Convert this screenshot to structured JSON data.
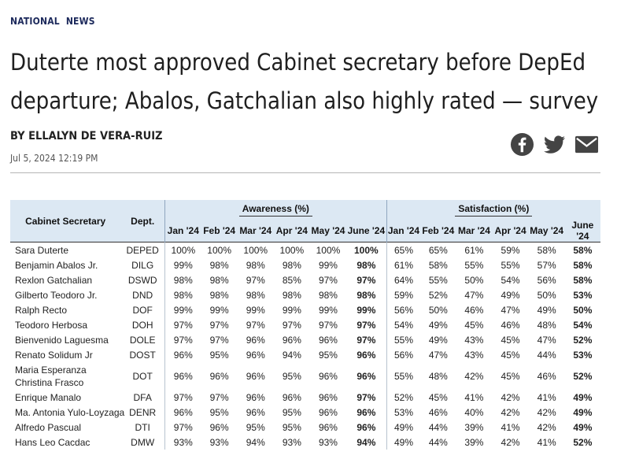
{
  "section": {
    "kicker_a": "NATIONAL",
    "kicker_b": "NEWS"
  },
  "article": {
    "headline": "Duterte most approved Cabinet secretary before DepEd departure; Abalos, Gatchalian also highly rated — survey",
    "byline": "BY ELLALYN DE VERA-RUIZ",
    "date": "Jul 5, 2024 12:19 PM"
  },
  "share": {
    "icons": [
      "facebook-icon",
      "twitter-icon",
      "email-icon"
    ]
  },
  "colors": {
    "kicker": "#1d2a5c",
    "table_header_bg": "#dce8f3"
  },
  "table": {
    "col_secretary": "Cabinet Secretary",
    "col_dept": "Dept.",
    "group_awareness": "Awareness (%)",
    "group_satisfaction": "Satisfaction (%)",
    "months": [
      "Jan '24",
      "Feb '24",
      "Mar '24",
      "Apr '24",
      "May '24",
      "June '24"
    ],
    "rows": [
      {
        "name": "Sara Duterte",
        "dept": "DEPED",
        "aw": [
          "100%",
          "100%",
          "100%",
          "100%",
          "100%",
          "100%"
        ],
        "sat": [
          "65%",
          "65%",
          "61%",
          "59%",
          "58%",
          "58%"
        ]
      },
      {
        "name": "Benjamin Abalos Jr.",
        "dept": "DILG",
        "aw": [
          "99%",
          "98%",
          "98%",
          "98%",
          "99%",
          "98%"
        ],
        "sat": [
          "61%",
          "58%",
          "55%",
          "55%",
          "57%",
          "58%"
        ]
      },
      {
        "name": "Rexlon Gatchalian",
        "dept": "DSWD",
        "aw": [
          "98%",
          "98%",
          "97%",
          "85%",
          "97%",
          "97%"
        ],
        "sat": [
          "64%",
          "55%",
          "50%",
          "54%",
          "56%",
          "58%"
        ]
      },
      {
        "name": "Gilberto Teodoro Jr.",
        "dept": "DND",
        "aw": [
          "98%",
          "98%",
          "98%",
          "98%",
          "98%",
          "98%"
        ],
        "sat": [
          "59%",
          "52%",
          "47%",
          "49%",
          "50%",
          "53%"
        ]
      },
      {
        "name": "Ralph Recto",
        "dept": "DOF",
        "aw": [
          "99%",
          "99%",
          "99%",
          "99%",
          "99%",
          "99%"
        ],
        "sat": [
          "56%",
          "50%",
          "46%",
          "47%",
          "49%",
          "50%"
        ]
      },
      {
        "name": "Teodoro Herbosa",
        "dept": "DOH",
        "aw": [
          "97%",
          "97%",
          "97%",
          "97%",
          "97%",
          "97%"
        ],
        "sat": [
          "54%",
          "49%",
          "45%",
          "46%",
          "48%",
          "54%"
        ]
      },
      {
        "name": "Bienvenido Laguesma",
        "dept": "DOLE",
        "aw": [
          "97%",
          "97%",
          "96%",
          "96%",
          "96%",
          "97%"
        ],
        "sat": [
          "55%",
          "49%",
          "43%",
          "45%",
          "47%",
          "52%"
        ]
      },
      {
        "name": "Renato Solidum Jr",
        "dept": "DOST",
        "aw": [
          "96%",
          "95%",
          "96%",
          "94%",
          "95%",
          "96%"
        ],
        "sat": [
          "56%",
          "47%",
          "43%",
          "45%",
          "44%",
          "53%"
        ]
      },
      {
        "name": "Maria Esperanza Christina Frasco",
        "dept": "DOT",
        "aw": [
          "96%",
          "96%",
          "96%",
          "95%",
          "96%",
          "96%"
        ],
        "sat": [
          "55%",
          "48%",
          "42%",
          "45%",
          "46%",
          "52%"
        ]
      },
      {
        "name": "Enrique Manalo",
        "dept": "DFA",
        "aw": [
          "97%",
          "97%",
          "96%",
          "96%",
          "96%",
          "97%"
        ],
        "sat": [
          "52%",
          "45%",
          "41%",
          "42%",
          "41%",
          "49%"
        ]
      },
      {
        "name": "Ma. Antonia Yulo-Loyzaga",
        "dept": "DENR",
        "aw": [
          "96%",
          "95%",
          "96%",
          "95%",
          "96%",
          "96%"
        ],
        "sat": [
          "53%",
          "46%",
          "40%",
          "42%",
          "42%",
          "49%"
        ]
      },
      {
        "name": "Alfredo Pascual",
        "dept": "DTI",
        "aw": [
          "97%",
          "96%",
          "95%",
          "95%",
          "96%",
          "96%"
        ],
        "sat": [
          "49%",
          "44%",
          "39%",
          "41%",
          "42%",
          "49%"
        ]
      },
      {
        "name": "Hans Leo Cacdac",
        "dept": "DMW",
        "aw": [
          "93%",
          "93%",
          "94%",
          "93%",
          "93%",
          "94%"
        ],
        "sat": [
          "49%",
          "44%",
          "39%",
          "42%",
          "41%",
          "52%"
        ]
      }
    ]
  }
}
